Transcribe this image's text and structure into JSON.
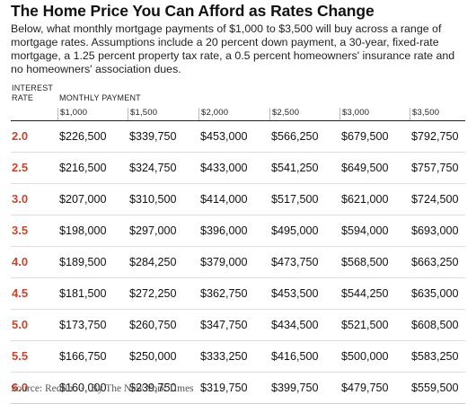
{
  "title": "The Home Price You Can Afford as Rates Change",
  "subtitle": "Below, what monthly mortgage payments of $1,000 to $3,500 will buy across a range of mortgage rates. Assumptions include a 20 percent down payment, a 30-year, fixed-rate mortgage, a 1.25 percent property tax rate, a 0.5 percent homeowners' insurance rate and no homeowners' association dues.",
  "header": {
    "rate_label_line1": "INTEREST",
    "rate_label_line2": "RATE",
    "monthly_label": "MONTHLY PAYMENT"
  },
  "source": {
    "source_text": "Source: Redfin",
    "credit_text": "By The New York Times"
  },
  "colors": {
    "rate_text": "#c8462d",
    "rule": "#222222",
    "row_divider": "#dddddd"
  },
  "chart_data": {
    "type": "table",
    "columns": [
      "$1,000",
      "$1,500",
      "$2,000",
      "$2,500",
      "$3,000",
      "$3,500"
    ],
    "rows": [
      {
        "rate": "2.0",
        "values": [
          "$226,500",
          "$339,750",
          "$453,000",
          "$566,250",
          "$679,500",
          "$792,750"
        ]
      },
      {
        "rate": "2.5",
        "values": [
          "$216,500",
          "$324,750",
          "$433,000",
          "$541,250",
          "$649,500",
          "$757,750"
        ]
      },
      {
        "rate": "3.0",
        "values": [
          "$207,000",
          "$310,500",
          "$414,000",
          "$517,500",
          "$621,000",
          "$724,500"
        ]
      },
      {
        "rate": "3.5",
        "values": [
          "$198,000",
          "$297,000",
          "$396,000",
          "$495,000",
          "$594,000",
          "$693,000"
        ]
      },
      {
        "rate": "4.0",
        "values": [
          "$189,500",
          "$284,250",
          "$379,000",
          "$473,750",
          "$568,500",
          "$663,250"
        ]
      },
      {
        "rate": "4.5",
        "values": [
          "$181,500",
          "$272,250",
          "$362,750",
          "$453,500",
          "$544,250",
          "$635,000"
        ]
      },
      {
        "rate": "5.0",
        "values": [
          "$173,750",
          "$260,750",
          "$347,750",
          "$434,500",
          "$521,500",
          "$608,500"
        ]
      },
      {
        "rate": "5.5",
        "values": [
          "$166,750",
          "$250,000",
          "$333,250",
          "$416,500",
          "$500,000",
          "$583,250"
        ]
      },
      {
        "rate": "6.0",
        "values": [
          "$160,000",
          "$239,750",
          "$319,750",
          "$399,750",
          "$479,750",
          "$559,500"
        ]
      }
    ]
  }
}
